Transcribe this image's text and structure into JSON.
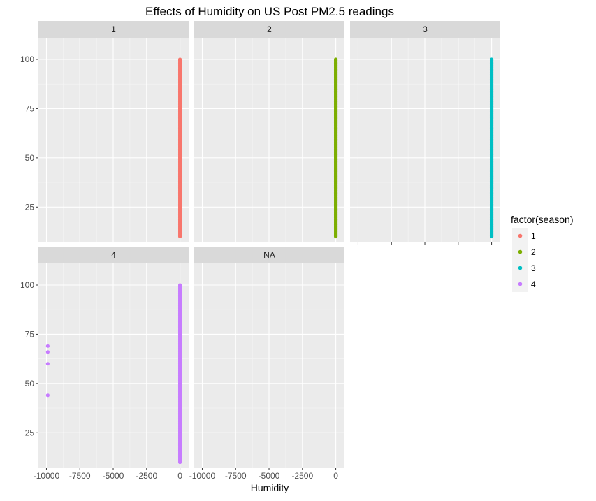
{
  "chart_data": {
    "type": "scatter",
    "title": "Effects of Humidity on US Post PM2.5 readings",
    "xlabel": "Humidity",
    "ylabel": "",
    "xlim": [
      -10600,
      650
    ],
    "ylim": [
      7,
      111
    ],
    "x_ticks": [
      -10000,
      -7500,
      -5000,
      -2500,
      0
    ],
    "y_ticks": [
      25,
      50,
      75,
      100
    ],
    "grid": true,
    "legend": {
      "title": "factor(season)",
      "placement": "right",
      "entries": [
        {
          "label": "1",
          "color": "#F8766D"
        },
        {
          "label": "2",
          "color": "#7CAE00"
        },
        {
          "label": "3",
          "color": "#00BFC4"
        },
        {
          "label": "4",
          "color": "#C77CFF"
        }
      ]
    },
    "facets": [
      {
        "label": "1",
        "color": "#F8766D",
        "column": {
          "x": 0,
          "y_min": 10,
          "y_max": 100
        },
        "outliers": []
      },
      {
        "label": "2",
        "color": "#7CAE00",
        "column": {
          "x": 0,
          "y_min": 10,
          "y_max": 100
        },
        "outliers": []
      },
      {
        "label": "3",
        "color": "#00BFC4",
        "column": {
          "x": 0,
          "y_min": 10,
          "y_max": 100
        },
        "outliers": []
      },
      {
        "label": "4",
        "color": "#C77CFF",
        "column": {
          "x": 0,
          "y_min": 10,
          "y_max": 100
        },
        "outliers": [
          {
            "x": -9900,
            "y": 69
          },
          {
            "x": -9900,
            "y": 66
          },
          {
            "x": -9900,
            "y": 60
          },
          {
            "x": -9900,
            "y": 44
          }
        ]
      },
      {
        "label": "NA",
        "color": "#888888",
        "column": null,
        "outliers": []
      }
    ]
  }
}
